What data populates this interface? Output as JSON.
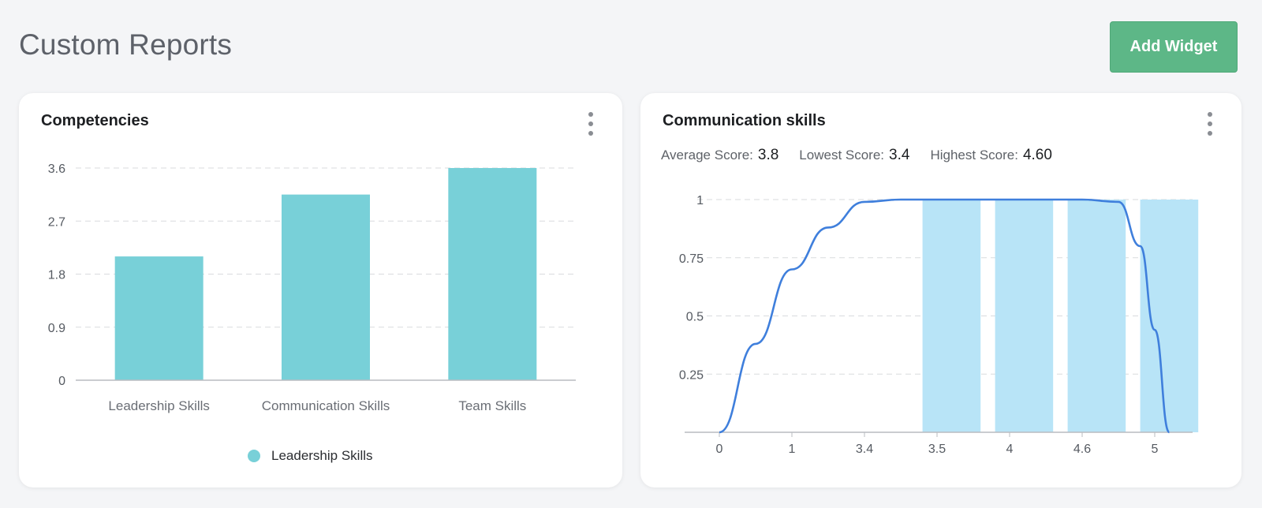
{
  "header": {
    "title": "Custom Reports",
    "add_widget_label": "Add Widget"
  },
  "colors": {
    "bar_teal": "#78d0d8",
    "hist_blue": "#b8e4f7",
    "curve_blue": "#3f7fdc",
    "button_green": "#5db787"
  },
  "competencies": {
    "title": "Competencies",
    "menu_icon": "kebab-menu-icon",
    "chart_data": {
      "type": "bar",
      "title": "Competencies",
      "categories": [
        "Leadership Skills",
        "Communication Skills",
        "Team Skills"
      ],
      "values": [
        2.1,
        3.15,
        3.6
      ],
      "yticks": [
        0,
        0.9,
        1.8,
        2.7,
        3.6
      ],
      "ylim": [
        0,
        3.6
      ],
      "grid": true,
      "legend": {
        "position": "bottom",
        "label": "Leadership Skills"
      }
    }
  },
  "communication": {
    "title": "Communication skills",
    "menu_icon": "kebab-menu-icon",
    "stats": {
      "average_label": "Average Score:",
      "average_value": "3.8",
      "lowest_label": "Lowest Score:",
      "lowest_value": "3.4",
      "highest_label": "Highest Score:",
      "highest_value": "4.60"
    },
    "chart_data": {
      "type": "bar",
      "title": "Communication skills",
      "x_tick_labels": [
        "0",
        "1",
        "3.4",
        "3.5",
        "4",
        "4.6",
        "5"
      ],
      "yticks": [
        0.25,
        0.5,
        0.75,
        1
      ],
      "ylim": [
        0,
        1
      ],
      "grid": true,
      "bars": [
        {
          "x_start": 2.8,
          "x_end": 3.6,
          "value": 1
        },
        {
          "x_start": 3.8,
          "x_end": 4.6,
          "value": 1
        },
        {
          "x_start": 4.8,
          "x_end": 5.6,
          "value": 1
        },
        {
          "x_start": 5.8,
          "x_end": 6.6,
          "value": 1
        }
      ],
      "curve": [
        [
          0,
          0
        ],
        [
          0.5,
          0.38
        ],
        [
          1,
          0.7
        ],
        [
          1.5,
          0.88
        ],
        [
          2,
          0.99
        ],
        [
          2.5,
          1
        ],
        [
          5,
          1
        ],
        [
          5.5,
          0.99
        ],
        [
          5.8,
          0.8
        ],
        [
          6.0,
          0.44
        ],
        [
          6.2,
          0.0
        ]
      ]
    }
  }
}
